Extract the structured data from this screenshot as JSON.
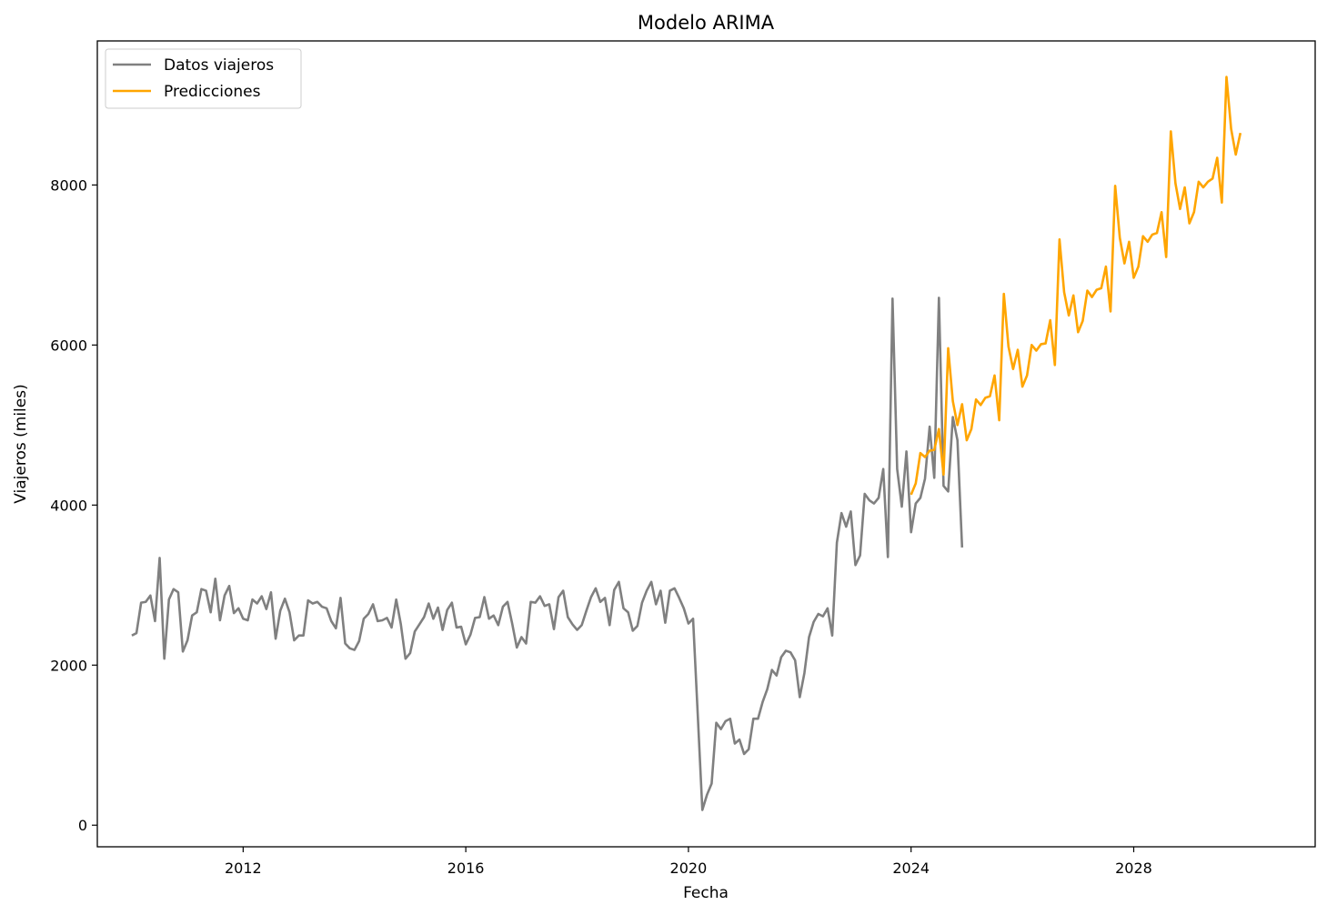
{
  "chart_data": {
    "type": "line",
    "title": "Modelo ARIMA",
    "xlabel": "Fecha",
    "ylabel": "Viajeros (miles)",
    "x_ticks": [
      2012,
      2016,
      2020,
      2024,
      2028
    ],
    "y_ticks": [
      0,
      2000,
      4000,
      6000,
      8000
    ],
    "xlim": [
      2009.38,
      2031.26
    ],
    "ylim": [
      -270,
      9800
    ],
    "grid": false,
    "legend_position": "top-left",
    "series": [
      {
        "name": "Datos viajeros",
        "color": "#808080",
        "start": [
          2010,
          1
        ],
        "frequency": "monthly",
        "values": [
          2370,
          2400,
          2780,
          2790,
          2870,
          2550,
          3340,
          2080,
          2820,
          2950,
          2910,
          2170,
          2310,
          2620,
          2660,
          2950,
          2930,
          2660,
          3080,
          2560,
          2870,
          2990,
          2650,
          2710,
          2580,
          2560,
          2820,
          2770,
          2860,
          2700,
          2910,
          2330,
          2680,
          2830,
          2660,
          2310,
          2370,
          2370,
          2810,
          2770,
          2790,
          2730,
          2710,
          2550,
          2460,
          2840,
          2270,
          2210,
          2190,
          2300,
          2580,
          2640,
          2760,
          2550,
          2560,
          2590,
          2470,
          2820,
          2510,
          2080,
          2150,
          2420,
          2510,
          2600,
          2770,
          2580,
          2720,
          2440,
          2690,
          2780,
          2470,
          2480,
          2260,
          2380,
          2590,
          2600,
          2850,
          2580,
          2620,
          2500,
          2730,
          2790,
          2520,
          2220,
          2350,
          2270,
          2790,
          2780,
          2860,
          2740,
          2760,
          2450,
          2850,
          2930,
          2600,
          2510,
          2440,
          2500,
          2680,
          2850,
          2960,
          2790,
          2840,
          2500,
          2940,
          3040,
          2710,
          2660,
          2430,
          2490,
          2780,
          2930,
          3040,
          2760,
          2930,
          2530,
          2930,
          2960,
          2840,
          2710,
          2520,
          2580,
          1390,
          190,
          380,
          520,
          1280,
          1200,
          1300,
          1330,
          1020,
          1070,
          890,
          950,
          1330,
          1330,
          1540,
          1700,
          1940,
          1870,
          2100,
          2180,
          2160,
          2060,
          1600,
          1900,
          2350,
          2540,
          2640,
          2610,
          2710,
          2370,
          3530,
          3900,
          3730,
          3920,
          3250,
          3370,
          4140,
          4060,
          4020,
          4090,
          4450,
          3350,
          6580,
          4450,
          3980,
          4670,
          3660,
          4020,
          4090,
          4330,
          4980,
          4340,
          6590,
          4240,
          4170,
          5100,
          4810,
          3470
        ]
      },
      {
        "name": "Predicciones",
        "color": "#ffa500",
        "start": [
          2024,
          1
        ],
        "frequency": "monthly",
        "values": [
          4130,
          4270,
          4650,
          4600,
          4680,
          4690,
          4950,
          4380,
          5960,
          5300,
          5000,
          5260,
          4810,
          4950,
          5320,
          5250,
          5340,
          5360,
          5620,
          5060,
          6640,
          5980,
          5700,
          5940,
          5480,
          5620,
          6000,
          5930,
          6010,
          6020,
          6310,
          5750,
          7320,
          6660,
          6370,
          6620,
          6160,
          6300,
          6680,
          6600,
          6690,
          6710,
          6980,
          6420,
          7990,
          7340,
          7020,
          7290,
          6840,
          6980,
          7360,
          7290,
          7380,
          7400,
          7660,
          7100,
          8670,
          8020,
          7700,
          7970,
          7520,
          7660,
          8040,
          7970,
          8040,
          8080,
          8340,
          7780,
          9350,
          8700,
          8380,
          8650
        ]
      }
    ]
  }
}
